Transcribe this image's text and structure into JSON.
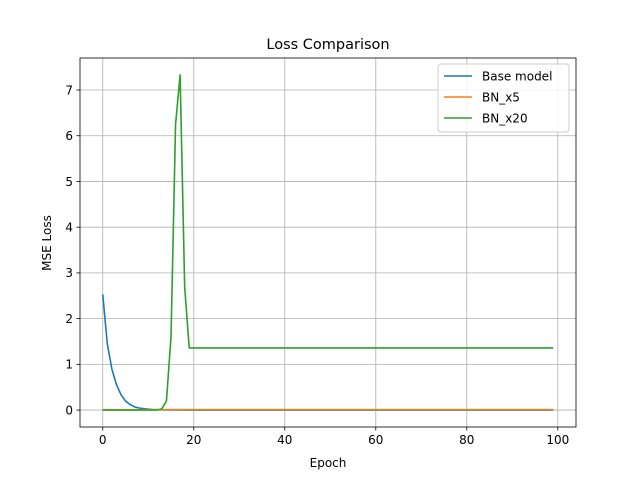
{
  "chart_data": {
    "type": "line",
    "title": "Loss Comparison",
    "xlabel": "Epoch",
    "ylabel": "MSE Loss",
    "xlim": [
      -5,
      104
    ],
    "ylim": [
      -0.37,
      7.7
    ],
    "x_ticks": [
      0,
      20,
      40,
      60,
      80,
      100
    ],
    "y_ticks": [
      0,
      1,
      2,
      3,
      4,
      5,
      6,
      7
    ],
    "grid": true,
    "legend_position": "top-right",
    "series": [
      {
        "name": "Base model",
        "color": "#1f77b4",
        "x": [
          0,
          1,
          2,
          3,
          4,
          5,
          6,
          7,
          8,
          9,
          10,
          11,
          12,
          13,
          14,
          15,
          20,
          40,
          60,
          80,
          99
        ],
        "values": [
          2.53,
          1.45,
          0.9,
          0.56,
          0.34,
          0.2,
          0.12,
          0.07,
          0.045,
          0.03,
          0.02,
          0.012,
          0.008,
          0.005,
          0.003,
          0.002,
          0.0,
          0.0,
          0.0,
          0.0,
          0.0
        ]
      },
      {
        "name": "BN_x5",
        "color": "#ff7f0e",
        "x": [
          0,
          20,
          40,
          60,
          80,
          99
        ],
        "values": [
          0.01,
          0.01,
          0.01,
          0.01,
          0.01,
          0.01
        ]
      },
      {
        "name": "BN_x20",
        "color": "#2ca02c",
        "x": [
          0,
          12,
          13,
          14,
          15,
          16,
          17,
          18,
          19,
          40,
          60,
          80,
          99
        ],
        "values": [
          0.0,
          0.0,
          0.03,
          0.2,
          1.6,
          6.25,
          7.33,
          2.7,
          1.36,
          1.36,
          1.36,
          1.36,
          1.36
        ]
      }
    ]
  }
}
